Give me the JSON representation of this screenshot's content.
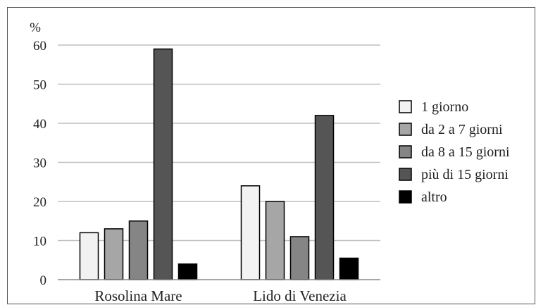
{
  "chart_data": {
    "type": "bar",
    "ylabel": "%",
    "ylim": [
      0,
      60
    ],
    "yticks": [
      0,
      10,
      20,
      30,
      40,
      50,
      60
    ],
    "grid": true,
    "legend_position": "right",
    "categories": [
      "Rosolina Mare",
      "Lido di Venezia"
    ],
    "series": [
      {
        "name": "1 giorno",
        "color": "#f2f2f2",
        "values": [
          12,
          24
        ]
      },
      {
        "name": "da 2 a 7 giorni",
        "color": "#a6a6a6",
        "values": [
          13,
          20
        ]
      },
      {
        "name": "da 8 a 15 giorni",
        "color": "#858585",
        "values": [
          15,
          11
        ]
      },
      {
        "name": "più di 15 giorni",
        "color": "#555555",
        "values": [
          59,
          42
        ]
      },
      {
        "name": "altro",
        "color": "#000000",
        "values": [
          4,
          5.5
        ]
      }
    ]
  }
}
